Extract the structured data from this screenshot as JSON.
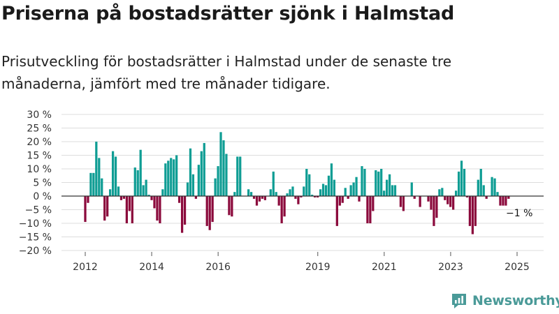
{
  "header": {
    "title": "Priserna på bostadsrätter sjönk i Halmstad",
    "subtitle": "Prisutveckling för bostadsrätter i Halmstad under de senaste tre månaderna, jämfört med tre månader tidigare."
  },
  "brand": {
    "name": "Newsworthy",
    "icon": "newsworthy-logo-icon"
  },
  "colors": {
    "positive": "#0f9d94",
    "negative": "#8b0a3c",
    "grid": "#dddddd",
    "zero_line": "#333333"
  },
  "chart_data": {
    "type": "bar",
    "x_start": 2011.5,
    "x_step": 0.0833,
    "x_ticks": [
      2012,
      2014,
      2016,
      2019,
      2021,
      2023,
      2025
    ],
    "ylim": [
      -20,
      30
    ],
    "y_ticks": [
      30,
      25,
      20,
      15,
      10,
      5,
      0,
      -5,
      -10,
      -15,
      -20
    ],
    "y_tick_suffix": " %",
    "grid": true,
    "values": [
      0,
      0,
      0,
      0,
      0,
      0,
      -9.5,
      -2.5,
      8.5,
      8.5,
      20,
      14,
      6.5,
      -9,
      -7.5,
      2.5,
      16.5,
      14.5,
      3.5,
      -1.5,
      -1,
      -10,
      -5.5,
      -10,
      10.5,
      9.5,
      17,
      4,
      6,
      0.5,
      -1.5,
      -4.5,
      -9,
      -10,
      2.5,
      12,
      13,
      14,
      13.5,
      15,
      -2.5,
      -13.5,
      -10.5,
      5,
      17.5,
      8,
      -1,
      11.5,
      16.5,
      19.5,
      -11,
      -12.5,
      -9.5,
      6.5,
      11,
      23.5,
      20.5,
      15.5,
      -7,
      -7.5,
      1.5,
      14.5,
      14.5,
      0,
      0,
      2.5,
      1.5,
      -1,
      -3.5,
      -2,
      -1,
      -1.5,
      0,
      2.5,
      9,
      1.5,
      -3.5,
      -10,
      -7.5,
      1,
      2.5,
      3.5,
      -1,
      -3,
      -0.5,
      3.5,
      10,
      8,
      0.5,
      -0.5,
      -0.5,
      2.5,
      4.5,
      4,
      7.5,
      12,
      6,
      -11,
      -3.5,
      -2.5,
      3,
      -1,
      4,
      5,
      7,
      -2,
      11,
      10,
      -10,
      -10,
      -5.5,
      9.5,
      9,
      10,
      2,
      6,
      8,
      4,
      4,
      0,
      -4,
      -5.5,
      0,
      0,
      5,
      -1,
      0,
      -4,
      0,
      0,
      -2,
      -5,
      -11,
      -8,
      2.5,
      3,
      -1.5,
      -3,
      -4,
      -5,
      2,
      9,
      13,
      10,
      -0.5,
      -11,
      -14,
      -11,
      6,
      10,
      4,
      -1,
      0,
      7,
      6.5,
      1.5,
      -3.5,
      -3.5,
      -3.5,
      -1
    ],
    "annotations": [
      {
        "text": "−1 %"
      }
    ]
  }
}
